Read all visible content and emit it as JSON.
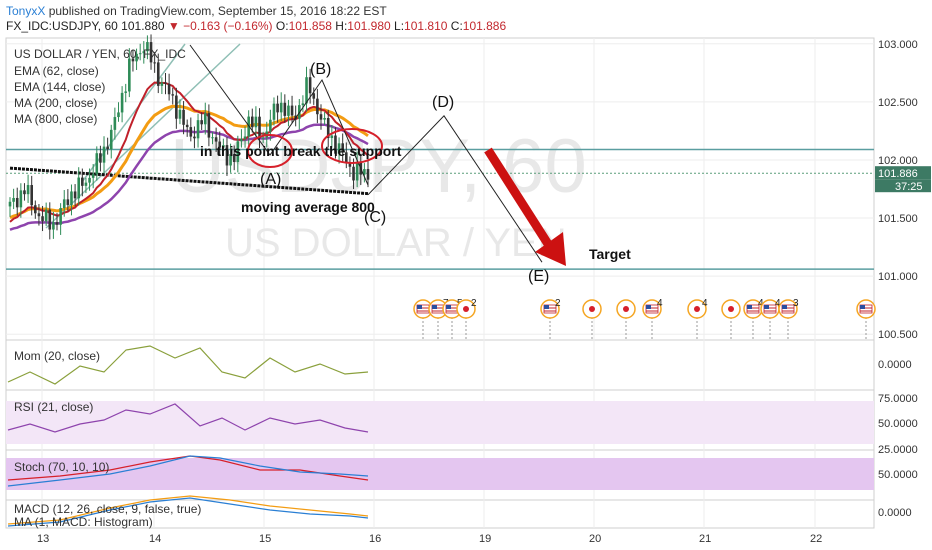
{
  "header": {
    "author": "TonyxX",
    "published": "published on TradingView.com, September 15, 2016 18:22 EST",
    "symbol": "FX_IDC:USDJPY, 60",
    "last": "101.880",
    "change": "−0.163 (−0.16%)",
    "o_label": "O:",
    "o": "101.858",
    "h_label": "H:",
    "h": "101.980",
    "l_label": "L:",
    "l": "101.810",
    "c_label": "C:",
    "c": "101.886"
  },
  "main_legend": [
    "US DOLLAR / YEN, 60, FX_IDC",
    "EMA (62, close)",
    "EMA (144, close)",
    "MA (200, close)",
    "MA (800, close)"
  ],
  "watermark": {
    "big": "USDJPY, 60",
    "small": "US DOLLAR / YEN"
  },
  "annotations": {
    "break": "in this point break the support",
    "ma800": "moving average 800",
    "target": "Target",
    "A": "(A)",
    "B": "(B)",
    "C": "(C)",
    "D": "(D)",
    "E": "(E)"
  },
  "price_badge": {
    "value": "101.886",
    "timer": "37:25"
  },
  "event_labels": [
    "7",
    "5",
    "2",
    "2",
    "4",
    "4",
    "4",
    "4",
    "3"
  ],
  "indicators": {
    "mom": "Mom (20, close)",
    "rsi": "RSI (21, close)",
    "stoch": "Stoch (70, 10, 10)",
    "macd1": "MACD (12, 26, close, 9, false, true)",
    "macd2": "MA (1, MACD: Histogram)"
  },
  "colors": {
    "up": "#2e8b57",
    "down": "#333333",
    "ema62": "#c0202a",
    "ema144": "#f39c12",
    "ma200": "#8e44ad",
    "ma800": "#111111",
    "target_arrow": "#cc1111",
    "support": "#5a9ea0",
    "rsi_fill": "#f3e6f7",
    "stoch_fill": "#e4c6f0"
  },
  "chart_data": [
    {
      "type": "candlestick",
      "symbol": "FX_IDC:USDJPY",
      "interval": "60",
      "x_ticks": [
        "13",
        "14",
        "15",
        "16",
        "19",
        "20",
        "21",
        "22"
      ],
      "y_ticks": [
        "103.000",
        "102.500",
        "102.000",
        "101.500",
        "101.000",
        "100.500"
      ],
      "ylim": [
        100.45,
        103.05
      ],
      "levels": [
        102.09,
        101.06
      ],
      "last_price": 101.886,
      "close_path": [
        101.6,
        101.75,
        101.5,
        101.45,
        101.7,
        101.8,
        102.0,
        102.3,
        102.8,
        103.0,
        102.7,
        102.5,
        102.2,
        102.35,
        102.1,
        102.0,
        102.35,
        102.2,
        102.5,
        102.35,
        102.65,
        102.3,
        102.1,
        101.9,
        101.886
      ],
      "projection": {
        "points": [
          [
            "C",
            101.7
          ],
          [
            "D",
            102.38
          ],
          [
            "E",
            101.12
          ]
        ]
      }
    },
    {
      "type": "line",
      "name": "Mom (20, close)",
      "y_ticks": [
        "0.0000"
      ]
    },
    {
      "type": "line",
      "name": "RSI (21, close)",
      "y_ticks": [
        "75.0000",
        "50.0000",
        "25.0000"
      ]
    },
    {
      "type": "line",
      "name": "Stoch (70, 10, 10)",
      "y_ticks": [
        "50.0000"
      ]
    },
    {
      "type": "line",
      "name": "MACD (12, 26, close, 9, false, true)",
      "y_ticks": [
        "0.0000"
      ]
    }
  ]
}
